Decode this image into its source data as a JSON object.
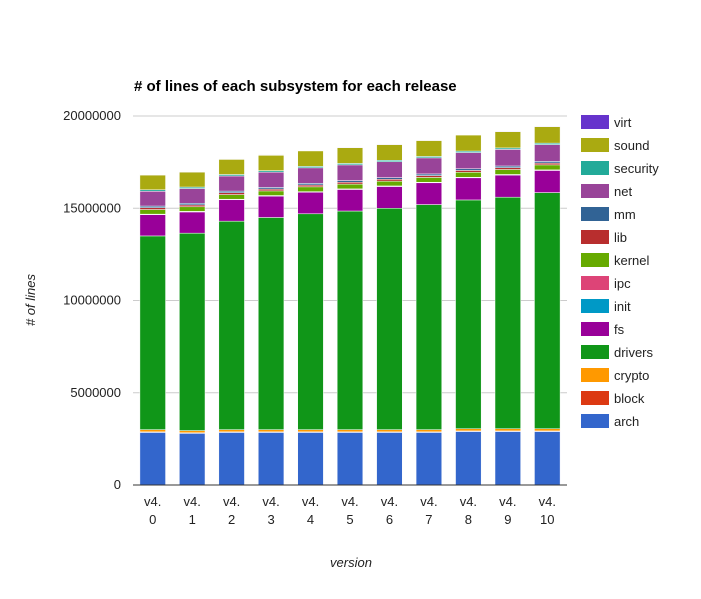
{
  "chart_data": {
    "type": "bar",
    "stacked": true,
    "title": "# of lines of each subsystem for each release",
    "xlabel": "version",
    "ylabel": "# of lines",
    "ylim": [
      0,
      20000000
    ],
    "yticks": [
      "0",
      "5000000",
      "10000000",
      "15000000",
      "20000000"
    ],
    "grid": true,
    "legend_position": "right",
    "categories": [
      [
        "v4.",
        "0"
      ],
      [
        "v4.",
        "1"
      ],
      [
        "v4.",
        "2"
      ],
      [
        "v4.",
        "3"
      ],
      [
        "v4.",
        "4"
      ],
      [
        "v4.",
        "5"
      ],
      [
        "v4.",
        "6"
      ],
      [
        "v4.",
        "7"
      ],
      [
        "v4.",
        "8"
      ],
      [
        "v4.",
        "9"
      ],
      [
        "v4.",
        "10"
      ]
    ],
    "series": [
      {
        "name": "arch",
        "color": "#3366cc",
        "values": [
          2850000,
          2800000,
          2850000,
          2850000,
          2850000,
          2850000,
          2850000,
          2850000,
          2900000,
          2900000,
          2900000
        ]
      },
      {
        "name": "block",
        "color": "#dc3912",
        "values": [
          30000,
          30000,
          30000,
          30000,
          30000,
          30000,
          30000,
          30000,
          30000,
          30000,
          30000
        ]
      },
      {
        "name": "crypto",
        "color": "#ff9900",
        "values": [
          120000,
          120000,
          120000,
          120000,
          120000,
          120000,
          120000,
          120000,
          120000,
          120000,
          120000
        ]
      },
      {
        "name": "drivers",
        "color": "#109618",
        "values": [
          10500000,
          10700000,
          11300000,
          11500000,
          11700000,
          11850000,
          12000000,
          12200000,
          12400000,
          12550000,
          12800000
        ]
      },
      {
        "name": "fs",
        "color": "#990099",
        "values": [
          1150000,
          1150000,
          1160000,
          1160000,
          1170000,
          1170000,
          1180000,
          1180000,
          1200000,
          1200000,
          1200000
        ]
      },
      {
        "name": "init",
        "color": "#0099c6",
        "values": [
          10000,
          10000,
          10000,
          10000,
          10000,
          10000,
          10000,
          10000,
          10000,
          10000,
          10000
        ]
      },
      {
        "name": "ipc",
        "color": "#dd4477",
        "values": [
          20000,
          20000,
          20000,
          20000,
          20000,
          20000,
          20000,
          20000,
          20000,
          20000,
          20000
        ]
      },
      {
        "name": "kernel",
        "color": "#66aa00",
        "values": [
          250000,
          250000,
          250000,
          250000,
          260000,
          260000,
          260000,
          260000,
          270000,
          270000,
          270000
        ]
      },
      {
        "name": "lib",
        "color": "#b82e2e",
        "values": [
          100000,
          100000,
          100000,
          100000,
          100000,
          100000,
          100000,
          100000,
          100000,
          100000,
          100000
        ]
      },
      {
        "name": "mm",
        "color": "#316395",
        "values": [
          90000,
          90000,
          90000,
          90000,
          90000,
          90000,
          90000,
          90000,
          90000,
          90000,
          90000
        ]
      },
      {
        "name": "net",
        "color": "#994499",
        "values": [
          800000,
          800000,
          820000,
          830000,
          840000,
          850000,
          860000,
          870000,
          880000,
          900000,
          910000
        ]
      },
      {
        "name": "security",
        "color": "#22aa99",
        "values": [
          80000,
          80000,
          80000,
          80000,
          80000,
          80000,
          80000,
          80000,
          80000,
          80000,
          80000
        ]
      },
      {
        "name": "sound",
        "color": "#aaaa11",
        "values": [
          800000,
          810000,
          820000,
          830000,
          840000,
          850000,
          850000,
          860000,
          870000,
          880000,
          890000
        ]
      },
      {
        "name": "virt",
        "color": "#6633cc",
        "values": [
          20000,
          20000,
          20000,
          20000,
          20000,
          20000,
          20000,
          20000,
          20000,
          20000,
          20000
        ]
      }
    ]
  }
}
